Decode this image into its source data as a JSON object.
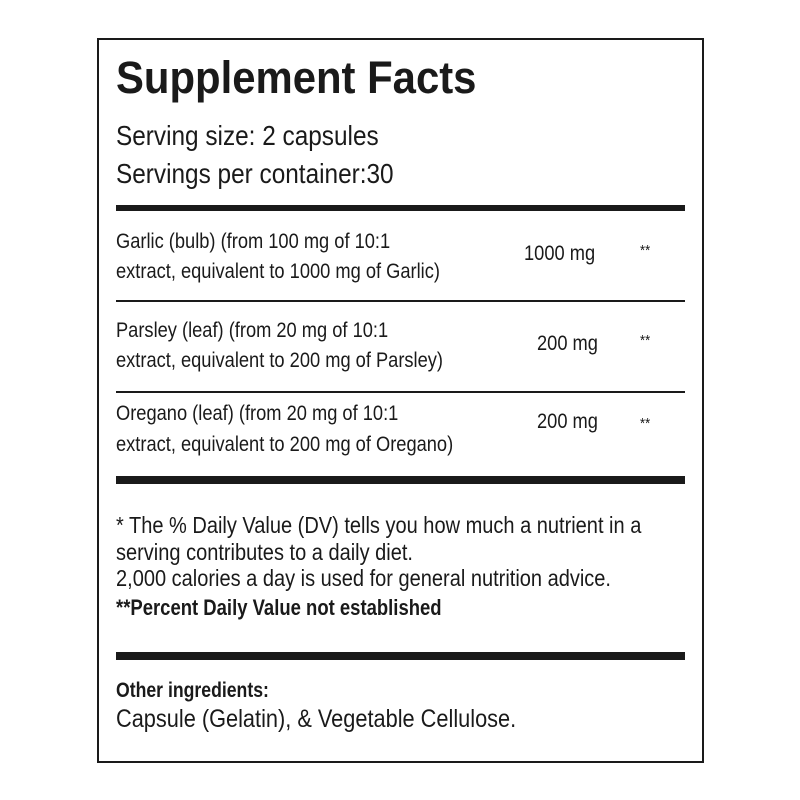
{
  "title": "Supplement Facts",
  "serving_size": "Serving size: 2 capsules",
  "servings_per_container": "Servings per container:30",
  "ingredients": [
    {
      "line1": "Garlic   (bulb) (from 100 mg of 10:1",
      "line2": "extract, equivalent to 1000 mg of Garlic)",
      "amount": "1000 mg",
      "dv": "**"
    },
    {
      "line1": "Parsley   (leaf) (from 20 mg of 10:1",
      "line2": "extract, equivalent to 200 mg of Parsley)",
      "amount": "200 mg",
      "dv": "**"
    },
    {
      "line1": "Oregano    (leaf) (from 20 mg of 10:1",
      "line2": "extract, equivalent to 200 mg of Oregano)",
      "amount": "200 mg",
      "dv": "**"
    }
  ],
  "footnote": {
    "line1": "* The % Daily Value (DV) tells you how much a nutrient in a",
    "line2": "serving contributes to a daily diet.",
    "line3": "2,000 calories a day is used for general nutrition advice.",
    "line4": "**Percent Daily Value not established"
  },
  "other_ingredients": {
    "label": "Other  ingredients:",
    "text": "Capsule (Gelatin), & Vegetable Cellulose."
  }
}
